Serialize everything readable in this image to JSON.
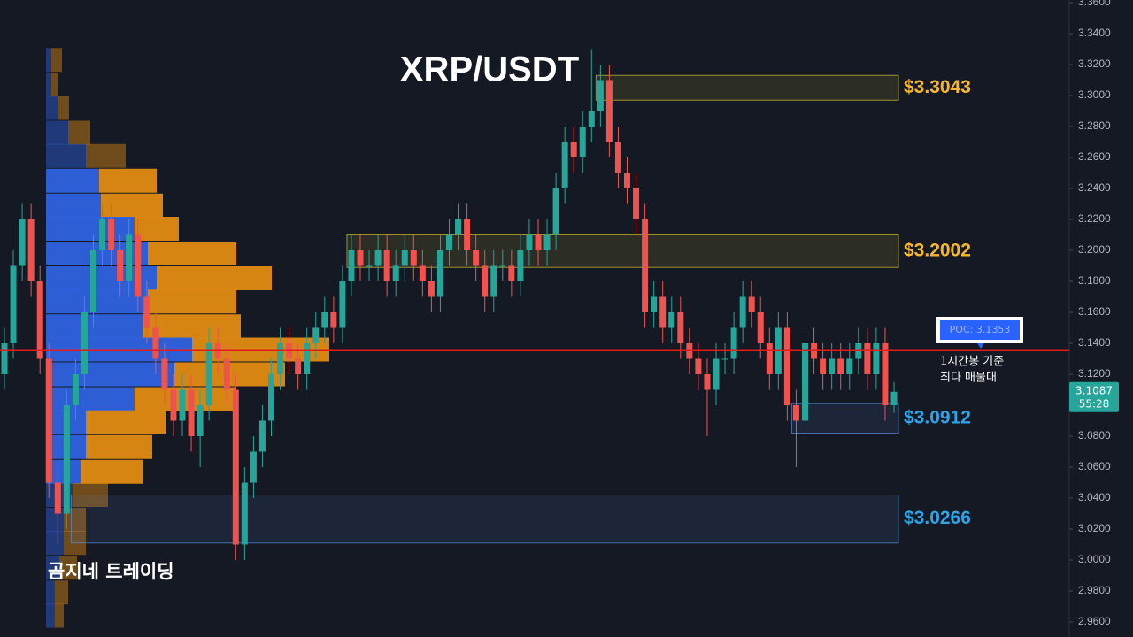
{
  "chart_data": {
    "type": "candlestick",
    "title": "XRP/USDT",
    "watermark": "곰지네 트레이딩",
    "up_color": "#26a69a",
    "down_color": "#ef5350",
    "grid": false,
    "ylim": [
      2.96,
      3.36
    ],
    "yticks": [
      {
        "value": 3.36,
        "label": "3.3600"
      },
      {
        "value": 3.34,
        "label": "3.3400"
      },
      {
        "value": 3.32,
        "label": "3.3200"
      },
      {
        "value": 3.3,
        "label": "3.3000"
      },
      {
        "value": 3.28,
        "label": "3.2800"
      },
      {
        "value": 3.26,
        "label": "3.2600"
      },
      {
        "value": 3.24,
        "label": "3.2400"
      },
      {
        "value": 3.22,
        "label": "3.2200"
      },
      {
        "value": 3.2,
        "label": "3.2000"
      },
      {
        "value": 3.18,
        "label": "3.1800"
      },
      {
        "value": 3.16,
        "label": "3.1600"
      },
      {
        "value": 3.14,
        "label": "3.1400"
      },
      {
        "value": 3.12,
        "label": "3.1200"
      },
      {
        "value": 3.1,
        "label": "3.1000"
      },
      {
        "value": 3.08,
        "label": "3.0800"
      },
      {
        "value": 3.06,
        "label": "3.0600"
      },
      {
        "value": 3.04,
        "label": "3.0400"
      },
      {
        "value": 3.02,
        "label": "3.0200"
      },
      {
        "value": 3.0,
        "label": "3.0000"
      },
      {
        "value": 2.98,
        "label": "2.9800"
      },
      {
        "value": 2.96,
        "label": "2.9600"
      }
    ],
    "open": [
      3.12,
      3.14,
      3.19,
      3.22,
      3.18,
      3.13,
      3.05,
      3.03,
      3.1,
      3.12,
      3.16,
      3.2,
      3.22,
      3.2,
      3.18,
      3.21,
      3.17,
      3.15,
      3.13,
      3.11,
      3.09,
      3.11,
      3.08,
      3.1,
      3.14,
      3.13,
      3.11,
      3.01,
      3.05,
      3.07,
      3.09,
      3.12,
      3.14,
      3.13,
      3.12,
      3.14,
      3.15,
      3.16,
      3.15,
      3.18,
      3.2,
      3.19,
      3.19,
      3.2,
      3.18,
      3.19,
      3.2,
      3.19,
      3.18,
      3.17,
      3.2,
      3.21,
      3.22,
      3.2,
      3.19,
      3.17,
      3.19,
      3.19,
      3.18,
      3.2,
      3.21,
      3.2,
      3.21,
      3.24,
      3.27,
      3.26,
      3.28,
      3.29,
      3.31,
      3.27,
      3.25,
      3.24,
      3.22,
      3.16,
      3.17,
      3.15,
      3.16,
      3.14,
      3.13,
      3.12,
      3.11,
      3.13,
      3.13,
      3.15,
      3.17,
      3.16,
      3.14,
      3.12,
      3.15,
      3.1,
      3.09,
      3.14,
      3.13,
      3.12,
      3.13,
      3.12,
      3.13,
      3.14,
      3.12,
      3.14,
      3.1
    ],
    "high": [
      3.15,
      3.2,
      3.23,
      3.23,
      3.19,
      3.14,
      3.06,
      3.11,
      3.13,
      3.17,
      3.21,
      3.23,
      3.23,
      3.21,
      3.22,
      3.22,
      3.18,
      3.16,
      3.14,
      3.12,
      3.12,
      3.12,
      3.11,
      3.15,
      3.15,
      3.14,
      3.12,
      3.06,
      3.08,
      3.1,
      3.13,
      3.15,
      3.15,
      3.14,
      3.15,
      3.16,
      3.17,
      3.17,
      3.19,
      3.21,
      3.21,
      3.2,
      3.21,
      3.21,
      3.2,
      3.21,
      3.21,
      3.2,
      3.19,
      3.21,
      3.22,
      3.23,
      3.23,
      3.21,
      3.2,
      3.2,
      3.2,
      3.2,
      3.21,
      3.22,
      3.22,
      3.22,
      3.25,
      3.28,
      3.28,
      3.29,
      3.33,
      3.32,
      3.32,
      3.28,
      3.26,
      3.25,
      3.23,
      3.18,
      3.18,
      3.17,
      3.17,
      3.15,
      3.14,
      3.13,
      3.14,
      3.14,
      3.16,
      3.18,
      3.18,
      3.17,
      3.15,
      3.16,
      3.16,
      3.11,
      3.15,
      3.15,
      3.14,
      3.14,
      3.14,
      3.14,
      3.15,
      3.15,
      3.15,
      3.15,
      3.115
    ],
    "low": [
      3.11,
      3.13,
      3.18,
      3.17,
      3.12,
      3.04,
      3.01,
      3.02,
      3.09,
      3.11,
      3.15,
      3.19,
      3.19,
      3.17,
      3.17,
      3.16,
      3.14,
      3.12,
      3.1,
      3.08,
      3.08,
      3.07,
      3.06,
      3.09,
      3.12,
      3.1,
      3.0,
      3.0,
      3.04,
      3.06,
      3.08,
      3.11,
      3.12,
      3.11,
      3.11,
      3.13,
      3.14,
      3.14,
      3.14,
      3.17,
      3.18,
      3.18,
      3.18,
      3.17,
      3.17,
      3.18,
      3.18,
      3.17,
      3.16,
      3.16,
      3.19,
      3.2,
      3.19,
      3.18,
      3.16,
      3.16,
      3.18,
      3.17,
      3.17,
      3.19,
      3.19,
      3.19,
      3.2,
      3.23,
      3.25,
      3.25,
      3.27,
      3.28,
      3.26,
      3.24,
      3.23,
      3.21,
      3.15,
      3.15,
      3.14,
      3.14,
      3.13,
      3.12,
      3.11,
      3.08,
      3.1,
      3.12,
      3.12,
      3.14,
      3.15,
      3.13,
      3.11,
      3.11,
      3.09,
      3.06,
      3.08,
      3.12,
      3.11,
      3.11,
      3.11,
      3.11,
      3.12,
      3.11,
      3.11,
      3.09,
      3.095
    ],
    "close": [
      3.14,
      3.19,
      3.22,
      3.18,
      3.13,
      3.05,
      3.03,
      3.1,
      3.12,
      3.16,
      3.2,
      3.22,
      3.2,
      3.18,
      3.21,
      3.17,
      3.15,
      3.13,
      3.11,
      3.09,
      3.11,
      3.08,
      3.1,
      3.14,
      3.13,
      3.11,
      3.01,
      3.05,
      3.07,
      3.09,
      3.12,
      3.14,
      3.13,
      3.12,
      3.14,
      3.15,
      3.16,
      3.15,
      3.18,
      3.2,
      3.19,
      3.19,
      3.2,
      3.18,
      3.19,
      3.2,
      3.19,
      3.18,
      3.17,
      3.2,
      3.21,
      3.22,
      3.2,
      3.19,
      3.17,
      3.19,
      3.19,
      3.18,
      3.2,
      3.21,
      3.2,
      3.21,
      3.24,
      3.27,
      3.26,
      3.28,
      3.29,
      3.31,
      3.27,
      3.25,
      3.24,
      3.22,
      3.16,
      3.17,
      3.15,
      3.16,
      3.14,
      3.13,
      3.12,
      3.11,
      3.13,
      3.13,
      3.15,
      3.17,
      3.16,
      3.14,
      3.12,
      3.15,
      3.1,
      3.09,
      3.14,
      3.13,
      3.12,
      3.13,
      3.12,
      3.13,
      3.14,
      3.12,
      3.14,
      3.1,
      3.1087
    ],
    "volume_profile": {
      "prices": [
        3.323,
        3.307,
        3.292,
        3.276,
        3.261,
        3.245,
        3.229,
        3.214,
        3.198,
        3.182,
        3.167,
        3.151,
        3.136,
        3.12,
        3.104,
        3.089,
        3.073,
        3.057,
        3.042,
        3.026,
        3.011,
        2.995,
        2.979,
        2.964
      ],
      "up": [
        6,
        6,
        13,
        25,
        45,
        60,
        62,
        100,
        115,
        125,
        115,
        110,
        165,
        145,
        100,
        45,
        45,
        40,
        30,
        20,
        20,
        15,
        10,
        10
      ],
      "down": [
        12,
        8,
        13,
        25,
        45,
        65,
        70,
        50,
        100,
        130,
        100,
        110,
        155,
        125,
        115,
        90,
        75,
        70,
        40,
        25,
        25,
        20,
        15,
        10
      ],
      "up_color": "#2f62e0",
      "down_color": "#e08a12",
      "value_area": [
        3.05,
        3.25
      ]
    },
    "poc": {
      "value": 3.1353,
      "label": "POC: 3.1353",
      "color": "#e31b1b"
    },
    "note": [
      "1시간봉 기준",
      "최다 매물대"
    ],
    "zones": [
      {
        "label": "$3.3043",
        "top": 3.313,
        "bottom": 3.297,
        "start": 67,
        "color": "#d4c234",
        "label_color": "#f5b731"
      },
      {
        "label": "$3.2002",
        "top": 3.21,
        "bottom": 3.189,
        "start": 39,
        "color": "#d4c234",
        "label_color": "#f5b731"
      },
      {
        "label": "$3.0912",
        "top": 3.101,
        "bottom": 3.082,
        "start": 89,
        "color": "#5b8fd6",
        "label_color": "#2ea3e6"
      },
      {
        "label": "$3.0266",
        "top": 3.042,
        "bottom": 3.011,
        "start": 8,
        "color": "#5b8fd6",
        "label_color": "#2ea3e6"
      }
    ],
    "last_price": {
      "value": 3.1087,
      "label": "3.1087",
      "countdown": "55:28",
      "color": "#26a69a"
    }
  }
}
